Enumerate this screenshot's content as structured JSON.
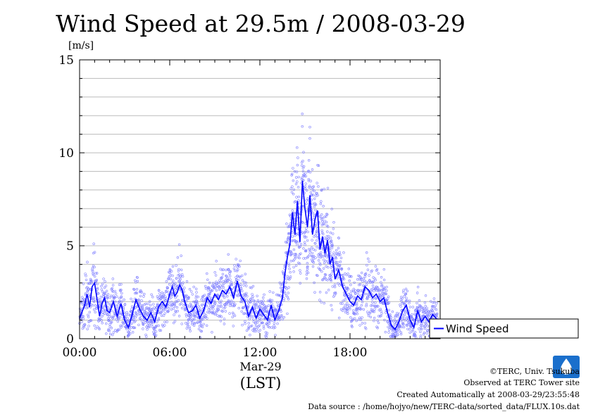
{
  "chart_data": {
    "type": "line",
    "title": "Wind Speed at 29.5m / 2008-03-29",
    "ylabel": "[m/s]",
    "xlabel": "(LST)",
    "date_label": "Mar-29",
    "ylim": [
      0,
      15
    ],
    "xlim": [
      "00:00",
      "24:00"
    ],
    "yticks": [
      0,
      5,
      10,
      15
    ],
    "xticks": [
      "00:00",
      "06:00",
      "12:00",
      "18:00"
    ],
    "grid": true,
    "legend_position": "right-outside",
    "series": [
      {
        "name": "Wind Speed",
        "color": "#0000ff",
        "points": [
          {
            "t": "00:00",
            "v": 1.1
          },
          {
            "t": "00:20",
            "v": 1.8
          },
          {
            "t": "00:30",
            "v": 2.4
          },
          {
            "t": "00:40",
            "v": 1.7
          },
          {
            "t": "00:50",
            "v": 2.8
          },
          {
            "t": "01:00",
            "v": 3.0
          },
          {
            "t": "01:10",
            "v": 2.1
          },
          {
            "t": "01:20",
            "v": 1.2
          },
          {
            "t": "01:30",
            "v": 1.9
          },
          {
            "t": "01:40",
            "v": 2.2
          },
          {
            "t": "01:50",
            "v": 1.5
          },
          {
            "t": "02:00",
            "v": 1.4
          },
          {
            "t": "02:15",
            "v": 2.0
          },
          {
            "t": "02:30",
            "v": 1.2
          },
          {
            "t": "02:45",
            "v": 1.9
          },
          {
            "t": "03:00",
            "v": 1.0
          },
          {
            "t": "03:15",
            "v": 0.6
          },
          {
            "t": "03:30",
            "v": 1.3
          },
          {
            "t": "03:45",
            "v": 2.1
          },
          {
            "t": "04:00",
            "v": 1.6
          },
          {
            "t": "04:15",
            "v": 1.2
          },
          {
            "t": "04:30",
            "v": 1.0
          },
          {
            "t": "04:45",
            "v": 1.4
          },
          {
            "t": "05:00",
            "v": 0.9
          },
          {
            "t": "05:15",
            "v": 1.7
          },
          {
            "t": "05:30",
            "v": 2.0
          },
          {
            "t": "05:45",
            "v": 1.7
          },
          {
            "t": "06:00",
            "v": 2.4
          },
          {
            "t": "06:10",
            "v": 2.8
          },
          {
            "t": "06:20",
            "v": 2.3
          },
          {
            "t": "06:30",
            "v": 2.5
          },
          {
            "t": "06:40",
            "v": 2.9
          },
          {
            "t": "06:50",
            "v": 2.6
          },
          {
            "t": "07:00",
            "v": 2.0
          },
          {
            "t": "07:15",
            "v": 1.4
          },
          {
            "t": "07:30",
            "v": 1.5
          },
          {
            "t": "07:45",
            "v": 1.8
          },
          {
            "t": "08:00",
            "v": 1.1
          },
          {
            "t": "08:15",
            "v": 1.5
          },
          {
            "t": "08:30",
            "v": 2.2
          },
          {
            "t": "08:45",
            "v": 1.9
          },
          {
            "t": "09:00",
            "v": 2.4
          },
          {
            "t": "09:15",
            "v": 2.1
          },
          {
            "t": "09:30",
            "v": 2.6
          },
          {
            "t": "09:45",
            "v": 2.4
          },
          {
            "t": "10:00",
            "v": 2.8
          },
          {
            "t": "10:15",
            "v": 2.2
          },
          {
            "t": "10:30",
            "v": 3.1
          },
          {
            "t": "10:45",
            "v": 2.3
          },
          {
            "t": "11:00",
            "v": 2.0
          },
          {
            "t": "11:15",
            "v": 1.2
          },
          {
            "t": "11:30",
            "v": 1.7
          },
          {
            "t": "11:45",
            "v": 1.1
          },
          {
            "t": "12:00",
            "v": 1.6
          },
          {
            "t": "12:15",
            "v": 1.3
          },
          {
            "t": "12:30",
            "v": 1.0
          },
          {
            "t": "12:45",
            "v": 1.8
          },
          {
            "t": "13:00",
            "v": 1.0
          },
          {
            "t": "13:15",
            "v": 1.5
          },
          {
            "t": "13:30",
            "v": 2.2
          },
          {
            "t": "13:40",
            "v": 3.5
          },
          {
            "t": "13:50",
            "v": 4.4
          },
          {
            "t": "14:00",
            "v": 5.1
          },
          {
            "t": "14:10",
            "v": 6.8
          },
          {
            "t": "14:20",
            "v": 5.6
          },
          {
            "t": "14:30",
            "v": 7.4
          },
          {
            "t": "14:40",
            "v": 5.2
          },
          {
            "t": "14:50",
            "v": 8.5
          },
          {
            "t": "15:00",
            "v": 7.0
          },
          {
            "t": "15:10",
            "v": 6.0
          },
          {
            "t": "15:20",
            "v": 7.7
          },
          {
            "t": "15:30",
            "v": 5.6
          },
          {
            "t": "15:40",
            "v": 6.4
          },
          {
            "t": "15:50",
            "v": 6.9
          },
          {
            "t": "16:00",
            "v": 4.8
          },
          {
            "t": "16:10",
            "v": 5.5
          },
          {
            "t": "16:20",
            "v": 4.6
          },
          {
            "t": "16:30",
            "v": 5.3
          },
          {
            "t": "16:40",
            "v": 4.0
          },
          {
            "t": "16:50",
            "v": 4.4
          },
          {
            "t": "17:00",
            "v": 3.2
          },
          {
            "t": "17:15",
            "v": 3.7
          },
          {
            "t": "17:30",
            "v": 2.8
          },
          {
            "t": "17:45",
            "v": 2.4
          },
          {
            "t": "18:00",
            "v": 2.0
          },
          {
            "t": "18:15",
            "v": 1.8
          },
          {
            "t": "18:30",
            "v": 2.3
          },
          {
            "t": "18:45",
            "v": 2.1
          },
          {
            "t": "19:00",
            "v": 2.8
          },
          {
            "t": "19:15",
            "v": 2.6
          },
          {
            "t": "19:30",
            "v": 2.2
          },
          {
            "t": "19:45",
            "v": 2.4
          },
          {
            "t": "20:00",
            "v": 2.0
          },
          {
            "t": "20:15",
            "v": 2.2
          },
          {
            "t": "20:30",
            "v": 1.4
          },
          {
            "t": "20:45",
            "v": 0.7
          },
          {
            "t": "21:00",
            "v": 0.5
          },
          {
            "t": "21:15",
            "v": 0.9
          },
          {
            "t": "21:30",
            "v": 1.5
          },
          {
            "t": "21:45",
            "v": 1.8
          },
          {
            "t": "22:00",
            "v": 1.0
          },
          {
            "t": "22:15",
            "v": 0.6
          },
          {
            "t": "22:30",
            "v": 1.5
          },
          {
            "t": "22:45",
            "v": 0.9
          },
          {
            "t": "23:00",
            "v": 1.2
          },
          {
            "t": "23:15",
            "v": 0.9
          },
          {
            "t": "23:30",
            "v": 1.3
          },
          {
            "t": "23:50",
            "v": 1.0
          }
        ]
      }
    ],
    "scatter": {
      "color": "#7f7fff",
      "description_note": "10-second raw samples shown as small open circles around the mean line"
    }
  },
  "footer": {
    "copyright": "©TERC, Univ. Tsukuba",
    "site": "Observed at TERC Tower site",
    "created": "Created Automatically at 2008-03-29/23:55:48",
    "source": "Data source : /home/hojyo/new/TERC-data/sorted_data/FLUX.10s.dat"
  },
  "logo": {
    "text": "TERC",
    "color": "#1a6fcc"
  }
}
